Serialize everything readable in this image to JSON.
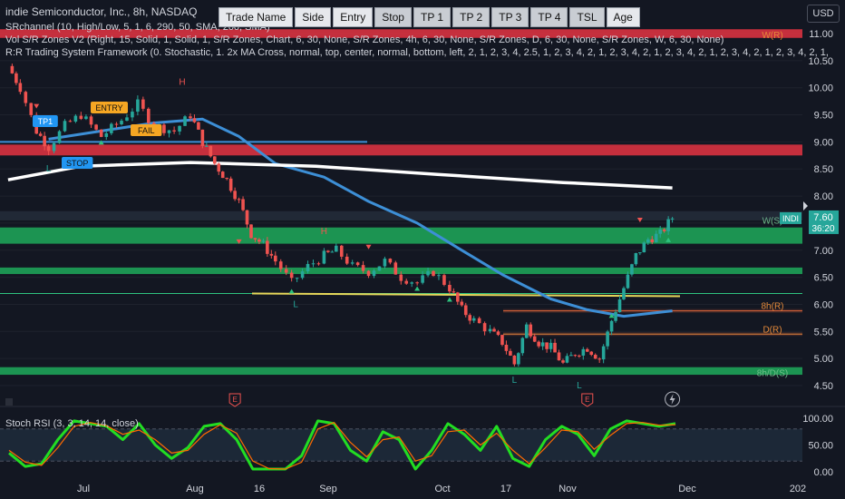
{
  "header": {
    "title": "indie Semiconductor, Inc., 8h, NASDAQ",
    "indicator1": "SRchannel (10, High/Low, 5, 1, 6, 290, 50, SMA, 200, SMA)",
    "indicator2": "Vol S/R Zones V2 (Right, 15, Solid, 1, Solid, 1, S/R Zones, Chart, 6, 30, None, S/R Zones, 4h, 6, 30, None, S/R Zones, D, 6, 30, None, S/R Zones, W, 6, 30, None)",
    "indicator3": "R:R Trading System Framework (0. Stochastic, 1. 2x MA Cross, normal, top, center, normal, bottom, left, 2, 1, 2, 3, 4, 2.5, 1, 2, 3, 4, 2, 1, 2, 3, 4, 2, 1, 2, 3, 4, 2, 1, 2, 3, 4, 2, 1, 2, 3, 4, 2, 1,"
  },
  "toolbar": {
    "buttons": [
      "Trade Name",
      "Side",
      "Entry",
      "Stop",
      "TP 1",
      "TP 2",
      "TP 3",
      "TP 4",
      "TSL",
      "Age"
    ]
  },
  "currency": "USD",
  "stoch_label": "Stoch RSI (3, 3, 14, 14, close)",
  "colors": {
    "background": "#131722",
    "up": "#26a69a",
    "down": "#ef5350",
    "support_zone": "#1faa5a",
    "resistance_zone": "#f23645",
    "ma_blue": "#3d8fd6",
    "ma_white": "#ffffff",
    "stoch_k": "#22dd22",
    "stoch_d": "#ff6a00",
    "price_badge": "#26a69a"
  },
  "chart_data": [
    {
      "type": "candlestick",
      "title": "indie Semiconductor, Inc., 8h, NASDAQ",
      "ylim": [
        4.3,
        11.3
      ],
      "y_ticks": [
        11.0,
        10.5,
        10.0,
        9.5,
        9.0,
        8.5,
        8.0,
        7.5,
        7.0,
        6.5,
        6.0,
        5.5,
        5.0,
        4.5
      ],
      "y_tick_labels": [
        "11.00",
        "10.50",
        "10.00",
        "9.50",
        "9.00",
        "8.50",
        "8.00",
        "7.50",
        "7.00",
        "6.50",
        "6.00",
        "5.50",
        "5.00",
        "4.50"
      ],
      "x_tick_labels": [
        "Jul",
        "Aug",
        "16",
        "Sep",
        "Oct",
        "17",
        "Nov",
        "Dec",
        "202"
      ],
      "last_price": {
        "symbol": "INDI",
        "price": "7.60",
        "countdown": "36:20"
      },
      "close_path": [
        {
          "t": "Jun 17",
          "c": 10.4
        },
        {
          "t": "Jun 20",
          "c": 10.0
        },
        {
          "t": "Jun 24",
          "c": 9.2
        },
        {
          "t": "Jun 27",
          "c": 8.9
        },
        {
          "t": "Jul 1",
          "c": 9.3
        },
        {
          "t": "Jul 5",
          "c": 9.5
        },
        {
          "t": "Jul 10",
          "c": 9.1
        },
        {
          "t": "Jul 15",
          "c": 9.4
        },
        {
          "t": "Jul 19",
          "c": 9.7
        },
        {
          "t": "Jul 23",
          "c": 9.3
        },
        {
          "t": "Jul 28",
          "c": 9.2
        },
        {
          "t": "Aug 1",
          "c": 9.5
        },
        {
          "t": "Aug 4",
          "c": 9.0
        },
        {
          "t": "Aug 7",
          "c": 8.6
        },
        {
          "t": "Aug 10",
          "c": 8.3
        },
        {
          "t": "Aug 13",
          "c": 7.9
        },
        {
          "t": "Aug 16",
          "c": 7.3
        },
        {
          "t": "Aug 19",
          "c": 7.1
        },
        {
          "t": "Aug 22",
          "c": 6.8
        },
        {
          "t": "Aug 26",
          "c": 6.4
        },
        {
          "t": "Aug 30",
          "c": 6.7
        },
        {
          "t": "Sep 3",
          "c": 6.9
        },
        {
          "t": "Sep 6",
          "c": 7.0
        },
        {
          "t": "Sep 10",
          "c": 6.7
        },
        {
          "t": "Sep 14",
          "c": 6.6
        },
        {
          "t": "Sep 18",
          "c": 6.8
        },
        {
          "t": "Sep 22",
          "c": 6.5
        },
        {
          "t": "Sep 26",
          "c": 6.4
        },
        {
          "t": "Sep 30",
          "c": 6.6
        },
        {
          "t": "Oct 4",
          "c": 6.3
        },
        {
          "t": "Oct 7",
          "c": 5.9
        },
        {
          "t": "Oct 10",
          "c": 5.7
        },
        {
          "t": "Oct 14",
          "c": 5.5
        },
        {
          "t": "Oct 17",
          "c": 5.3
        },
        {
          "t": "Oct 20",
          "c": 4.9
        },
        {
          "t": "Oct 23",
          "c": 5.6
        },
        {
          "t": "Oct 26",
          "c": 5.3
        },
        {
          "t": "Oct 29",
          "c": 5.2
        },
        {
          "t": "Nov 1",
          "c": 4.9
        },
        {
          "t": "Nov 4",
          "c": 5.1
        },
        {
          "t": "Nov 7",
          "c": 5.2
        },
        {
          "t": "Nov 10",
          "c": 5.0
        },
        {
          "t": "Nov 13",
          "c": 5.7
        },
        {
          "t": "Nov 16",
          "c": 6.3
        },
        {
          "t": "Nov 19",
          "c": 6.9
        },
        {
          "t": "Nov 22",
          "c": 7.2
        },
        {
          "t": "Nov 25",
          "c": 7.3
        },
        {
          "t": "Nov 28",
          "c": 7.6
        }
      ],
      "moving_averages": [
        {
          "name": "SMA 50",
          "color": "blue",
          "values": [
            {
              "t": "Jun 27",
              "v": 9.05
            },
            {
              "t": "Jul 10",
              "v": 9.2
            },
            {
              "t": "Jul 23",
              "v": 9.35
            },
            {
              "t": "Aug 4",
              "v": 9.42
            },
            {
              "t": "Aug 13",
              "v": 9.1
            },
            {
              "t": "Aug 22",
              "v": 8.6
            },
            {
              "t": "Sep 3",
              "v": 8.35
            },
            {
              "t": "Sep 14",
              "v": 7.9
            },
            {
              "t": "Sep 26",
              "v": 7.5
            },
            {
              "t": "Oct 7",
              "v": 7.0
            },
            {
              "t": "Oct 17",
              "v": 6.55
            },
            {
              "t": "Oct 29",
              "v": 6.1
            },
            {
              "t": "Nov 7",
              "v": 5.9
            },
            {
              "t": "Nov 16",
              "v": 5.78
            },
            {
              "t": "Nov 28",
              "v": 5.88
            }
          ]
        },
        {
          "name": "SMA 200",
          "color": "white",
          "values": [
            {
              "t": "Jun 17",
              "v": 8.3
            },
            {
              "t": "Jul 5",
              "v": 8.55
            },
            {
              "t": "Aug 1",
              "v": 8.62
            },
            {
              "t": "Sep 1",
              "v": 8.55
            },
            {
              "t": "Oct 1",
              "v": 8.4
            },
            {
              "t": "Nov 1",
              "v": 8.25
            },
            {
              "t": "Nov 28",
              "v": 8.15
            }
          ]
        }
      ],
      "zones": [
        {
          "kind": "resistance",
          "low": 10.92,
          "high": 11.08,
          "label": "W(R)"
        },
        {
          "kind": "resistance",
          "low": 8.75,
          "high": 8.95
        },
        {
          "kind": "support",
          "low": 7.12,
          "high": 7.42,
          "label": "W(S)"
        },
        {
          "kind": "support",
          "low": 6.56,
          "high": 6.68
        },
        {
          "kind": "support",
          "low": 4.7,
          "high": 4.84,
          "label": "8h/D(S)"
        },
        {
          "kind": "line",
          "level": 5.88,
          "label": "8h(R)"
        },
        {
          "kind": "line",
          "level": 5.45,
          "label": "D(R)"
        }
      ],
      "annotations": [
        "H",
        "L",
        "H",
        "L",
        "L",
        "L",
        "TP1",
        "ENTRY",
        "STOP",
        "FAIL"
      ]
    },
    {
      "type": "line",
      "title": "Stoch RSI (3, 3, 14, 14, close)",
      "ylim": [
        0,
        100
      ],
      "y_ticks": [
        100,
        50,
        0
      ],
      "y_tick_labels": [
        "100.00",
        "50.00",
        "0.00"
      ],
      "series": [
        {
          "name": "K",
          "values": [
            35,
            10,
            15,
            60,
            95,
            90,
            85,
            60,
            90,
            50,
            25,
            45,
            85,
            90,
            60,
            5,
            5,
            5,
            30,
            95,
            90,
            40,
            20,
            75,
            60,
            5,
            40,
            90,
            70,
            40,
            85,
            25,
            10,
            60,
            85,
            70,
            30,
            80,
            95,
            90,
            85,
            90
          ]
        },
        {
          "name": "D",
          "values": [
            40,
            18,
            12,
            45,
            85,
            92,
            86,
            70,
            78,
            60,
            35,
            40,
            70,
            88,
            72,
            20,
            6,
            5,
            18,
            80,
            92,
            55,
            28,
            60,
            65,
            20,
            30,
            75,
            78,
            50,
            72,
            40,
            15,
            45,
            78,
            75,
            42,
            68,
            90,
            92,
            87,
            88
          ]
        }
      ]
    }
  ]
}
